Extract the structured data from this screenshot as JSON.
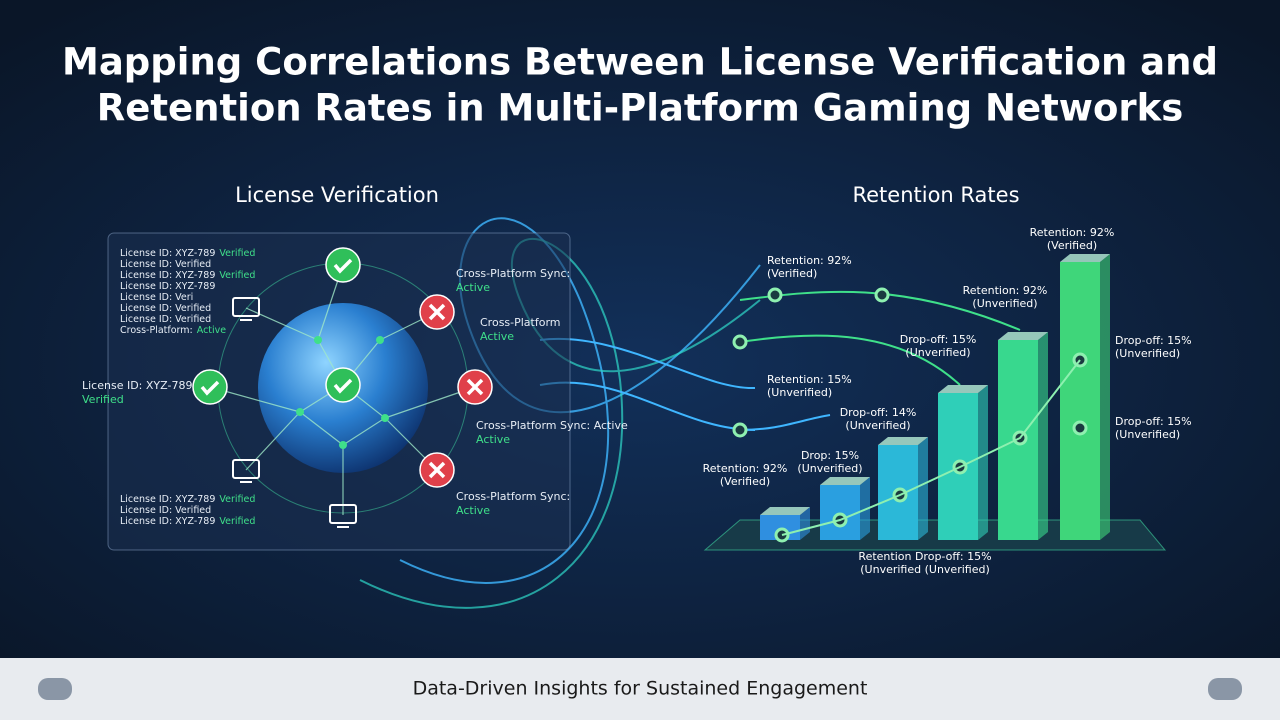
{
  "header": {
    "title_lines": [
      "Mapping Correlations Between License Verification and",
      "Retention Rates in Multi-Platform Gaming Networks"
    ]
  },
  "left": {
    "heading": "License Verification",
    "log_top": [
      [
        "License ID: XYZ-789",
        "Verified"
      ],
      [
        "License ID: Verified"
      ],
      [
        "License ID: XYZ-789",
        "Verified"
      ],
      [
        "License ID: XYZ-789"
      ],
      [
        "License ID: Veri"
      ],
      [
        "License ID: Verified"
      ],
      [
        "License ID: Verified"
      ],
      [
        "Cross-Platform:",
        "Active"
      ]
    ],
    "log_bottom": [
      [
        "License ID: XYZ-789",
        "Verified"
      ],
      [
        "License ID: Verified"
      ],
      [
        "License ID: XYZ-789",
        "Verified"
      ]
    ],
    "node_labels": [
      [
        "License ID: XYZ-789",
        "Verified"
      ],
      [
        "Cross-Platform Sync:",
        "Active"
      ],
      [
        "Cross-Platform",
        "Active"
      ],
      [
        "Cross-Platform Sync: Active",
        "Active"
      ],
      [
        "Cross-Platform Sync:",
        "Active"
      ]
    ]
  },
  "right": {
    "heading": "Retention Rates",
    "labels": [
      [
        "Retention: 92%",
        "(Verified)"
      ],
      [
        "Retention: 92%",
        "(Verified)"
      ],
      [
        "Retention: 92%",
        "(Unverified)"
      ],
      [
        "Drop-off: 15%",
        "(Unverified)"
      ],
      [
        "Retention: 15%",
        "(Unverified)"
      ],
      [
        "Drop-off: 14%",
        "(Unverified)"
      ],
      [
        "Drop: 15%",
        "(Unverified)"
      ],
      [
        "Retention: 92%",
        "(Verified)"
      ],
      [
        "Drop-off: 15%",
        "(Unverified)"
      ],
      [
        "Drop-off: 15%",
        "(Unverified)"
      ],
      [
        "Retention Drop-off: 15%",
        "(Unverified (Unverified)"
      ]
    ]
  },
  "footer": {
    "text": "Data-Driven Insights for Sustained Engagement"
  }
}
